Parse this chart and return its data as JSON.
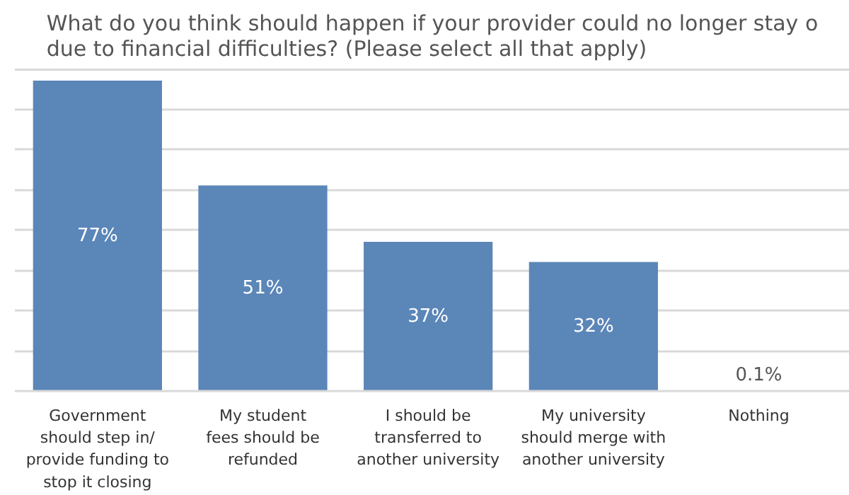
{
  "chart_data": {
    "type": "bar",
    "title": "What do you think should happen if your provider could no longer stay o\ndue to financial difficulties? (Please select all that apply)",
    "categories": [
      "Government\nshould step in/\nprovide funding to\nstop it closing",
      "My student\nfees should be\nrefunded",
      "I should be\ntransferred to\nanother university",
      "My university\nshould merge with\nanother university",
      "Nothing"
    ],
    "values": [
      77,
      51,
      37,
      32,
      0.1
    ],
    "value_labels": [
      "77%",
      "51%",
      "37%",
      "32%",
      "0.1%"
    ],
    "color": "#5b86b8",
    "ylim": [
      0,
      80
    ],
    "yticks": [
      {
        "value": 0,
        "label": null
      },
      {
        "value": 10,
        "label": null
      },
      {
        "value": 20,
        "label": null
      },
      {
        "value": 30,
        "label": null
      },
      {
        "value": 40,
        "label": null
      },
      {
        "value": 50,
        "label": null
      },
      {
        "value": 60,
        "label": null
      },
      {
        "value": 70,
        "label": null
      },
      {
        "value": 80,
        "label": null
      }
    ],
    "grid": "y",
    "tick_labels": "x"
  }
}
